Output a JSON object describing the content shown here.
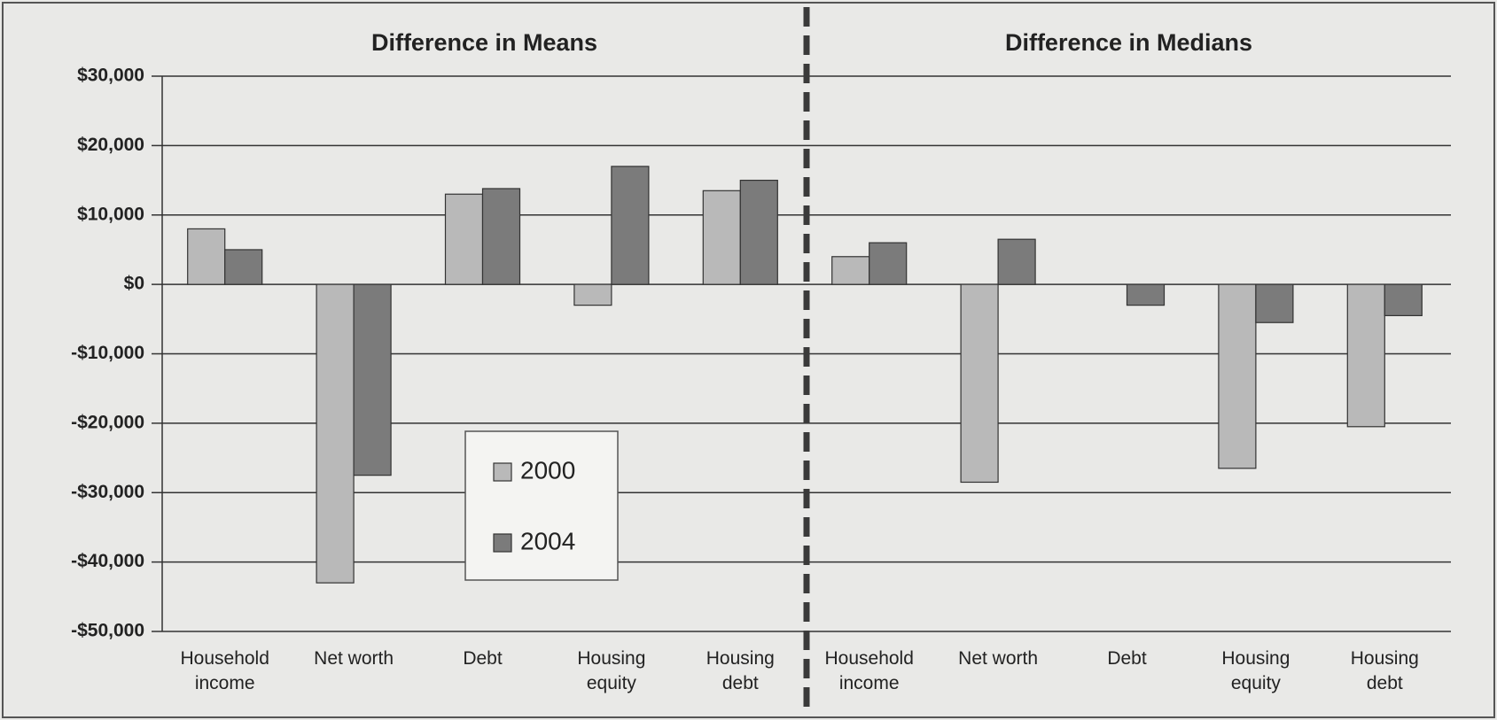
{
  "chart_data": {
    "type": "bar",
    "panel_titles": [
      "Difference in Means",
      "Difference in Medians"
    ],
    "categories": [
      "Household income",
      "Net worth",
      "Debt",
      "Housing equity",
      "Housing debt",
      "Household income",
      "Net worth",
      "Debt",
      "Housing equity",
      "Housing debt"
    ],
    "series": [
      {
        "name": "2000",
        "color": "#b9b9b9",
        "values": [
          8000,
          -43000,
          13000,
          -3000,
          13500,
          4000,
          -28500,
          0,
          -26500,
          -20500
        ]
      },
      {
        "name": "2004",
        "color": "#7b7b7b",
        "values": [
          5000,
          -27500,
          13800,
          17000,
          15000,
          6000,
          6500,
          -3000,
          -5500,
          -4500
        ]
      }
    ],
    "ylim": [
      -50000,
      30000
    ],
    "yticks": [
      {
        "value": -50000,
        "label": "-$50,000"
      },
      {
        "value": -40000,
        "label": "-$40,000"
      },
      {
        "value": -30000,
        "label": "-$30,000"
      },
      {
        "value": -20000,
        "label": "-$20,000"
      },
      {
        "value": -10000,
        "label": "-$10,000"
      },
      {
        "value": 0,
        "label": "$0"
      },
      {
        "value": 10000,
        "label": "$10,000"
      },
      {
        "value": 20000,
        "label": "$20,000"
      },
      {
        "value": 30000,
        "label": "$30,000"
      }
    ],
    "grid": true
  }
}
